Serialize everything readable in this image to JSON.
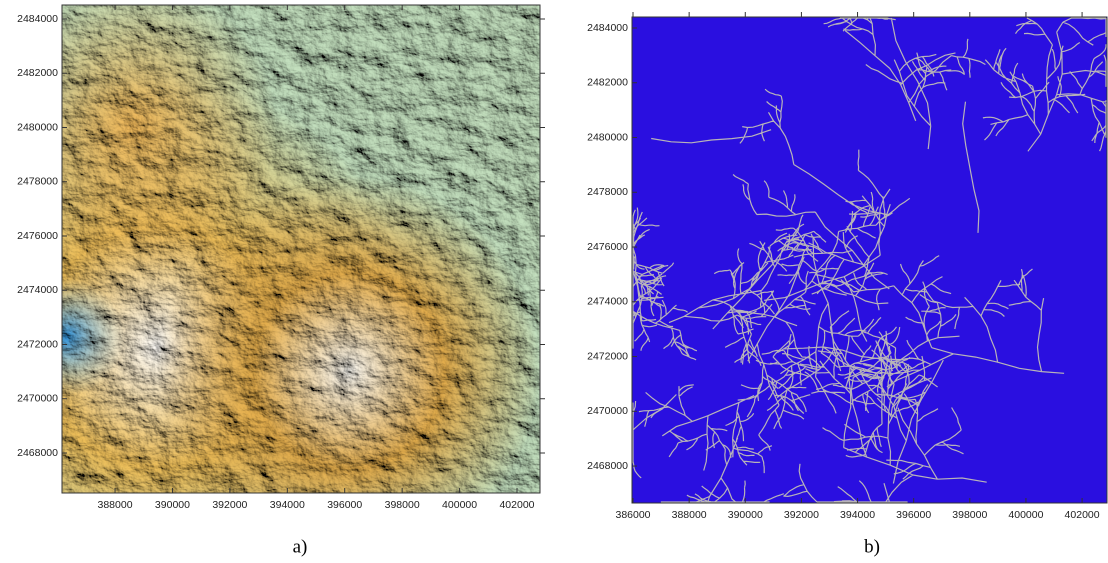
{
  "chart_data": [
    {
      "type": "map",
      "caption": "a)",
      "xlim": [
        386153,
        402801
      ],
      "ylim": [
        2466525,
        2484516
      ],
      "xticks": [
        388000,
        390000,
        392000,
        394000,
        396000,
        398000,
        400000,
        402000
      ],
      "yticks": [
        2468000,
        2470000,
        2472000,
        2474000,
        2476000,
        2478000,
        2480000,
        2482000,
        2484000
      ]
    },
    {
      "type": "map",
      "caption": "b)",
      "xlim": [
        385964,
        402888
      ],
      "ylim": [
        2466650,
        2484402
      ],
      "xticks": [
        386000,
        388000,
        390000,
        392000,
        394000,
        396000,
        398000,
        400000,
        402000
      ],
      "yticks": [
        2468000,
        2470000,
        2472000,
        2474000,
        2476000,
        2478000,
        2480000,
        2482000,
        2484000
      ]
    }
  ]
}
